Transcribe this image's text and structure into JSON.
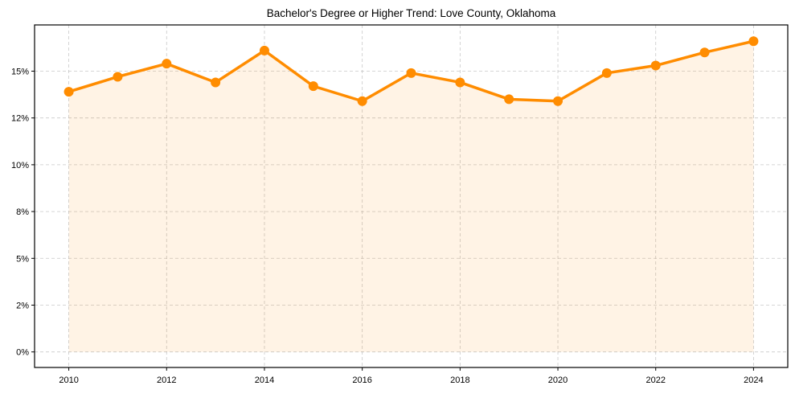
{
  "chart_data": {
    "type": "line",
    "title": "Bachelor's Degree or Higher Trend: Love County, Oklahoma",
    "xlabel": "",
    "ylabel": "",
    "x": [
      2010,
      2011,
      2012,
      2013,
      2014,
      2015,
      2016,
      2017,
      2018,
      2019,
      2020,
      2021,
      2022,
      2023,
      2024
    ],
    "series": [
      {
        "name": "Bachelor's Degree or Higher (%)",
        "values": [
          13.9,
          14.7,
          15.4,
          14.4,
          16.1,
          14.2,
          13.4,
          14.9,
          14.4,
          13.5,
          13.4,
          14.9,
          15.3,
          16.0,
          16.6
        ],
        "color": "#ff8c00",
        "fill_color": "#ff8c00",
        "fill_opacity": 0.1,
        "marker": "circle"
      }
    ],
    "xticks": [
      2010,
      2012,
      2014,
      2016,
      2018,
      2020,
      2022,
      2024
    ],
    "xtick_labels": [
      "2010",
      "2012",
      "2014",
      "2016",
      "2018",
      "2020",
      "2022",
      "2024"
    ],
    "yticks": [
      0,
      2.5,
      5,
      7.5,
      10,
      12.5,
      15
    ],
    "ytick_labels": [
      "0%",
      "2%",
      "5%",
      "8%",
      "10%",
      "12%",
      "15%"
    ],
    "xlim": [
      2009.3,
      2024.7
    ],
    "ylim": [
      -0.83,
      17.47
    ],
    "grid": true,
    "grid_style": "dashed",
    "legend": "none"
  }
}
